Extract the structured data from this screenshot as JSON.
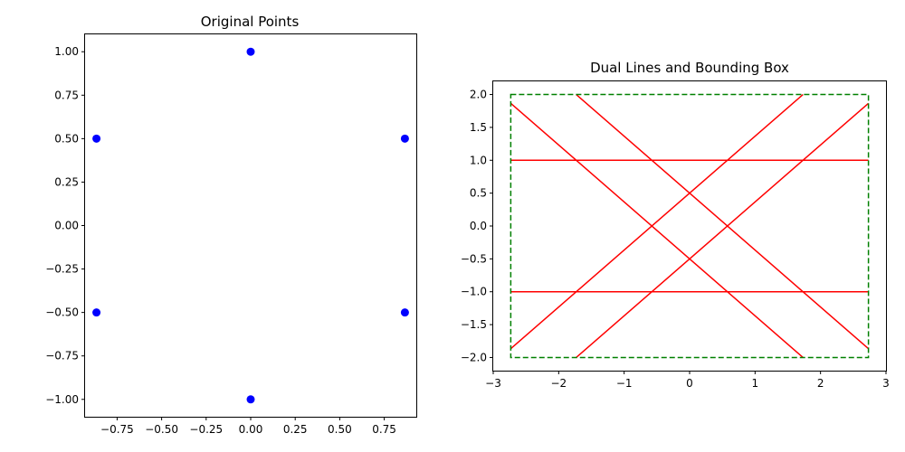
{
  "chart_data": [
    {
      "type": "scatter",
      "title": "Original Points",
      "xlabel": "",
      "ylabel": "",
      "xlim": [
        -0.93,
        0.93
      ],
      "ylim": [
        -1.1,
        1.1
      ],
      "xticks": [
        -0.75,
        -0.5,
        -0.25,
        0.0,
        0.25,
        0.5,
        0.75
      ],
      "xtick_labels": [
        "−0.75",
        "−0.50",
        "−0.25",
        "0.00",
        "0.25",
        "0.50",
        "0.75"
      ],
      "yticks": [
        1.0,
        0.75,
        0.5,
        0.25,
        0.0,
        -0.25,
        -0.5,
        -0.75,
        -1.0
      ],
      "ytick_labels": [
        "1.00",
        "0.75",
        "0.50",
        "0.25",
        "0.00",
        "−0.25",
        "−0.50",
        "−0.75",
        "−1.00"
      ],
      "grid": false,
      "color": "#0000ff",
      "points": [
        {
          "x": 0.0,
          "y": 1.0
        },
        {
          "x": 0.866,
          "y": 0.5
        },
        {
          "x": 0.866,
          "y": -0.5
        },
        {
          "x": 0.0,
          "y": -1.0
        },
        {
          "x": -0.866,
          "y": -0.5
        },
        {
          "x": -0.866,
          "y": 0.5
        }
      ]
    },
    {
      "type": "line",
      "title": "Dual Lines and Bounding Box",
      "xlabel": "",
      "ylabel": "",
      "xlim": [
        -3,
        3
      ],
      "ylim": [
        -2.2,
        2.2
      ],
      "xticks": [
        -3,
        -2,
        -1,
        0,
        1,
        2,
        3
      ],
      "xtick_labels": [
        "−3",
        "−2",
        "−1",
        "0",
        "1",
        "2",
        "3"
      ],
      "yticks": [
        2.0,
        1.5,
        1.0,
        0.5,
        0.0,
        -0.5,
        -1.0,
        -1.5,
        -2.0
      ],
      "ytick_labels": [
        "2.0",
        "1.5",
        "1.0",
        "0.5",
        "0.0",
        "−0.5",
        "−1.0",
        "−1.5",
        "−2.0"
      ],
      "grid": false,
      "line_color": "#ff0000",
      "box_color": "#008000",
      "box_style": "dashed",
      "lines": [
        {
          "slope": 0.0,
          "intercept": 1.0
        },
        {
          "slope": 0.0,
          "intercept": -1.0
        },
        {
          "slope": 0.866,
          "intercept": 0.5
        },
        {
          "slope": 0.866,
          "intercept": -0.5
        },
        {
          "slope": -0.866,
          "intercept": 0.5
        },
        {
          "slope": -0.866,
          "intercept": -0.5
        }
      ],
      "bounding_box": {
        "xmin": -2.732,
        "xmax": 2.732,
        "ymin": -2.0,
        "ymax": 2.0
      }
    }
  ]
}
